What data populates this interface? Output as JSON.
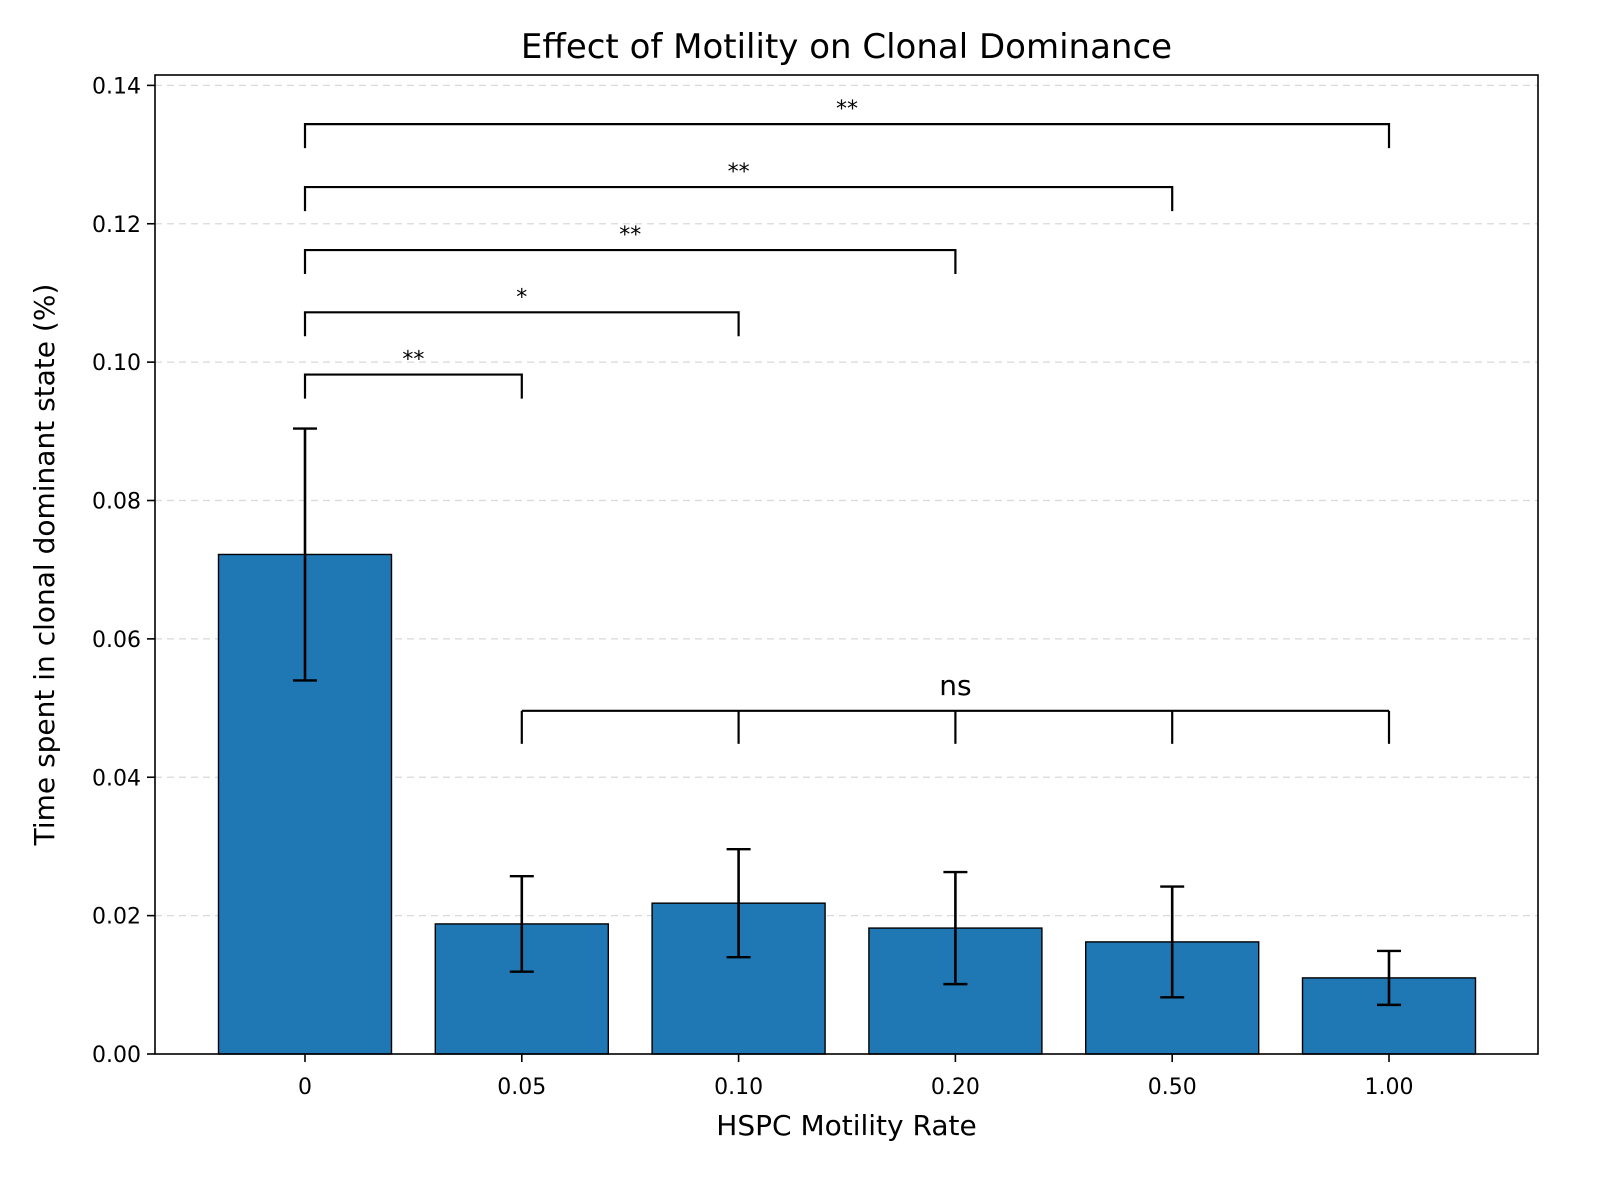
{
  "chart_data": {
    "type": "bar",
    "title": "Effect of Motility on Clonal Dominance",
    "xlabel": "HSPC Motility Rate",
    "ylabel": "Time spent in clonal dominant state (%)",
    "categories": [
      "0",
      "0.05",
      "0.10",
      "0.20",
      "0.50",
      "1.00"
    ],
    "values": [
      0.0722,
      0.0188,
      0.0218,
      0.0182,
      0.0162,
      0.011
    ],
    "errors": [
      0.0182,
      0.0069,
      0.0078,
      0.0081,
      0.008,
      0.0039
    ],
    "ylim": [
      0,
      0.1415
    ],
    "yticks": [
      0.0,
      0.02,
      0.04,
      0.06,
      0.08,
      0.1,
      0.12,
      0.14
    ],
    "ytick_labels": [
      "0.00",
      "0.02",
      "0.04",
      "0.06",
      "0.08",
      "0.10",
      "0.12",
      "0.14"
    ],
    "grid": "y-dashed",
    "colors": {
      "bar": "#1f77b4",
      "edge": "#000000",
      "grid": "#d9d9d9"
    },
    "significance": [
      {
        "from": 0,
        "to": 1,
        "y": 0.0982,
        "label": "**"
      },
      {
        "from": 0,
        "to": 2,
        "y": 0.1072,
        "label": "*"
      },
      {
        "from": 0,
        "to": 3,
        "y": 0.1162,
        "label": "**"
      },
      {
        "from": 0,
        "to": 4,
        "y": 0.1253,
        "label": "**"
      },
      {
        "from": 0,
        "to": 5,
        "y": 0.1344,
        "label": "**"
      }
    ],
    "ns_group": {
      "indices": [
        1,
        2,
        3,
        4,
        5
      ],
      "y": 0.0496,
      "label": "ns"
    }
  }
}
